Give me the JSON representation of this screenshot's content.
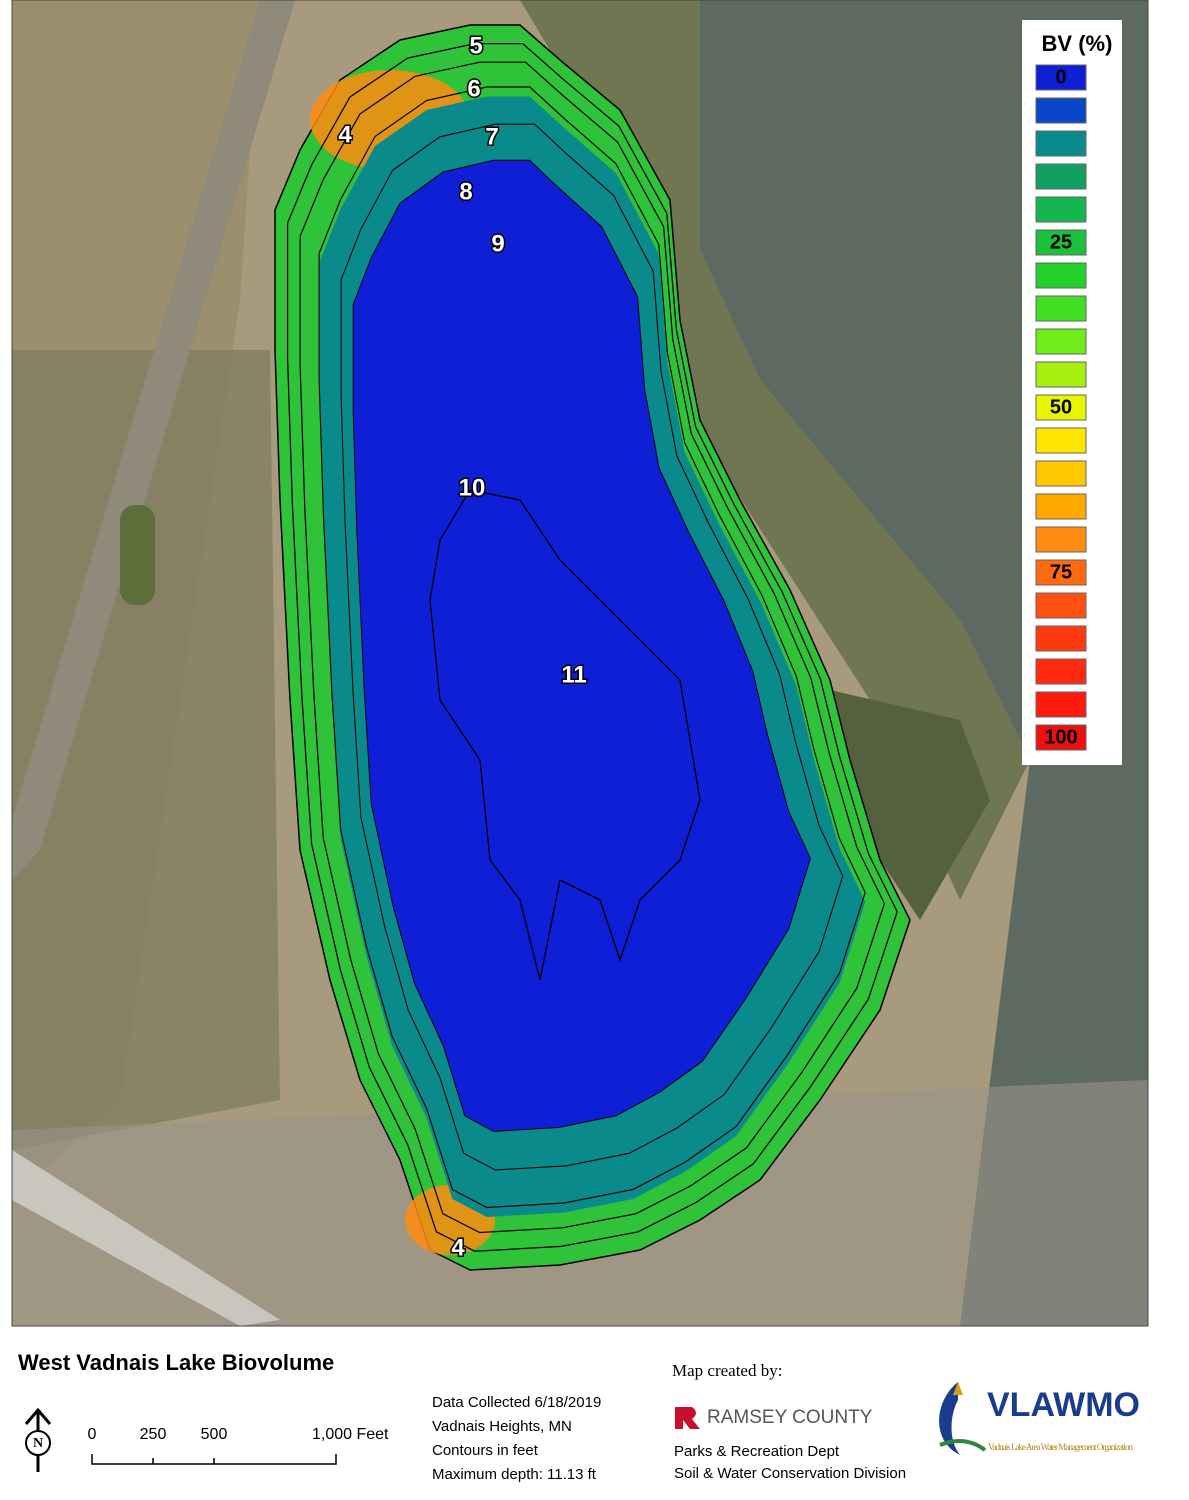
{
  "map": {
    "contour_labels": [
      "5",
      "6",
      "4",
      "7",
      "8",
      "9",
      "10",
      "11",
      "4"
    ],
    "legend": {
      "title": "BV (%)",
      "colors": [
        "#0f1fd6",
        "#0a47c8",
        "#0a8a8a",
        "#10a060",
        "#15b550",
        "#1dc03a",
        "#22d12a",
        "#40e020",
        "#70ec18",
        "#a8f010",
        "#e8f500",
        "#ffe600",
        "#ffc800",
        "#ffa800",
        "#ff8c10",
        "#ff6a10",
        "#ff5010",
        "#ff3a10",
        "#ff2a10",
        "#ff1a10",
        "#ee1010"
      ],
      "labels": [
        "0",
        null,
        null,
        null,
        null,
        "25",
        null,
        null,
        null,
        null,
        "50",
        null,
        null,
        null,
        null,
        "75",
        null,
        null,
        null,
        null,
        "100"
      ]
    }
  },
  "footer": {
    "title": "West Vadnais Lake Biovolume",
    "north": "N",
    "scale_bar": [
      "0",
      "250",
      "500",
      "1,000 Feet"
    ],
    "data_notes": [
      "Data Collected 6/18/2019",
      "Vadnais Heights, MN",
      "Contours in feet",
      "Maximum depth: 11.13 ft"
    ],
    "credits": {
      "heading": "Map created by:",
      "ramsey": "RAMSEY COUNTY",
      "ramsey_lines": [
        "Parks & Recreation Dept",
        "Soil & Water Conservation Division"
      ],
      "vlawmo": "VLAWMO",
      "vlawmo_subtitle": "Vadnais Lake Area Water Management Organization"
    }
  }
}
